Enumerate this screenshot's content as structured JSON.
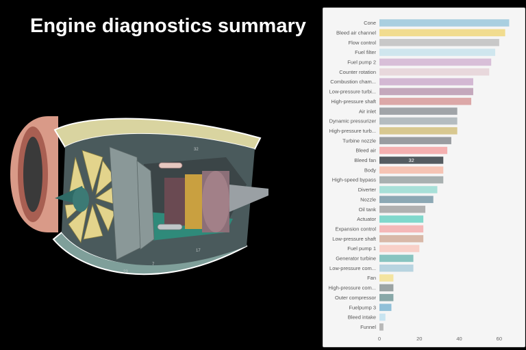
{
  "page": {
    "title": "Engine diagnostics summary"
  },
  "illustration": {
    "name": "jet-engine-cutaway",
    "labels": [
      "32",
      "17",
      "23",
      "7"
    ]
  },
  "colors": {
    "background": "#000000",
    "panel": "#f5f5f5",
    "highlight_bar": "#545b60"
  },
  "chart_data": {
    "type": "bar",
    "orientation": "horizontal",
    "title": "",
    "xlabel": "",
    "ylabel": "",
    "xlim": [
      0,
      70
    ],
    "xticks": [
      0,
      20,
      40,
      60
    ],
    "grid": false,
    "categories": [
      "Cone",
      "Bleed air channel",
      "Flow control",
      "Fuel filter",
      "Fuel pump 2",
      "Counter rotation",
      "Combustion cham...",
      "Low-pressure turbi...",
      "High-pressure shaft",
      "Air inlet",
      "Dynamic pressurizer",
      "High-pressure turb...",
      "Turbine nozzle",
      "Bleed air",
      "Bleed fan",
      "Body",
      "High-speed bypass",
      "Diverter",
      "Nozzle",
      "Oil tank",
      "Actuator",
      "Expansion control",
      "Low-pressure shaft",
      "Fuel pump 1",
      "Generator turbine",
      "Low-pressure com...",
      "Fan",
      "High-pressure com...",
      "Outer compressor",
      "Fuelpump 3",
      "Bleed intake",
      "Funnel"
    ],
    "values": [
      65,
      63,
      60,
      58,
      56,
      55,
      47,
      47,
      46,
      39,
      39,
      39,
      36,
      34,
      32,
      32,
      32,
      29,
      27,
      23,
      22,
      22,
      22,
      20,
      17,
      17,
      7,
      7,
      7,
      6,
      3,
      2
    ],
    "colors": [
      "#a9cfe0",
      "#f1dc8f",
      "#c8c8c8",
      "#cfe6ee",
      "#d8bfd8",
      "#e8d8dc",
      "#d3b8d3",
      "#c4a8bc",
      "#dca8a8",
      "#a0a4a8",
      "#b4bcc0",
      "#d8c890",
      "#999ca0",
      "#f4b0b0",
      "#545b60",
      "#f6c4b4",
      "#a8b0b0",
      "#a8e0d8",
      "#8ca8b4",
      "#b0b0b0",
      "#80d8cc",
      "#f4b8b8",
      "#d8b8a8",
      "#f8d0c8",
      "#88c4c0",
      "#b8d4e0",
      "#f4e4a0",
      "#9ca4a4",
      "#88a8a8",
      "#90c0d8",
      "#c8e4f0",
      "#b8b8b8"
    ],
    "data_labels": [
      {
        "category": "Bleed fan",
        "value": 32
      }
    ]
  }
}
